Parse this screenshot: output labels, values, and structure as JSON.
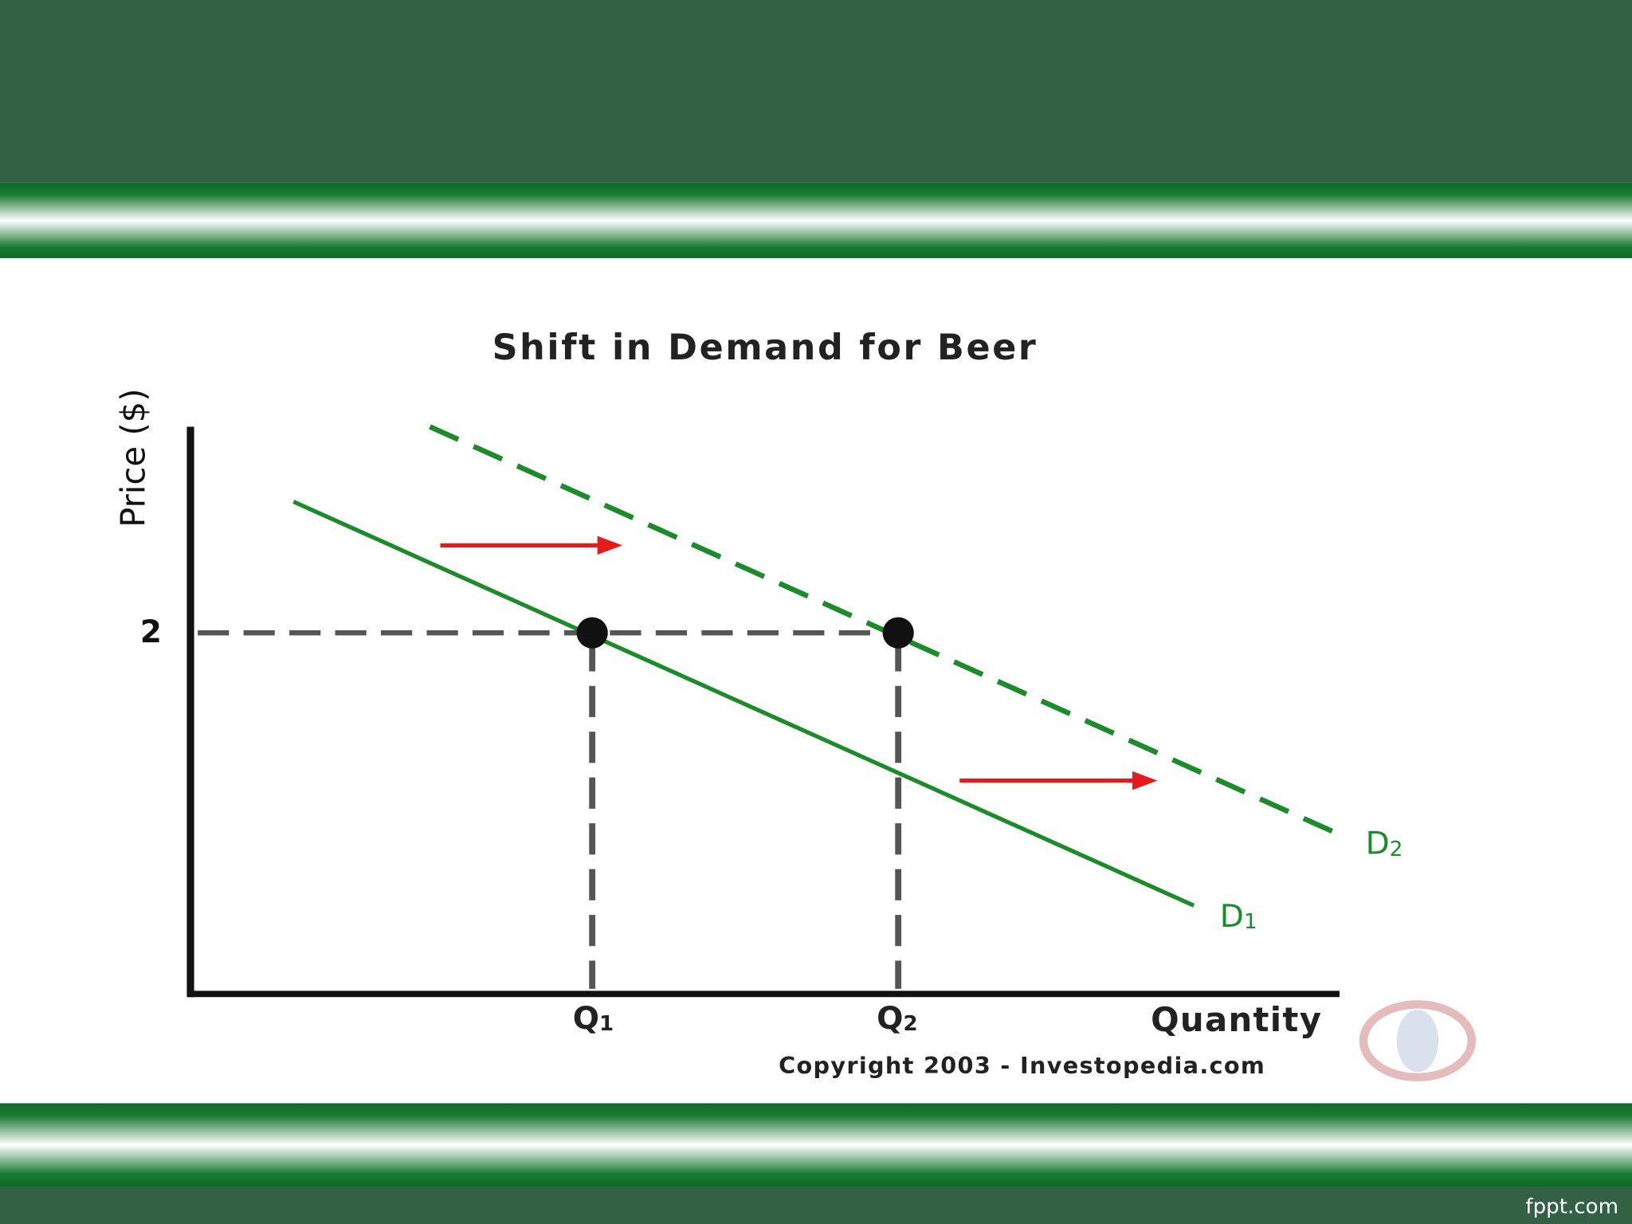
{
  "slide": {
    "title": "Shift in Demand for Beer",
    "y_axis_label": "Price ($)",
    "price_label": "2",
    "q1_label": {
      "main": "Q",
      "sub": "1"
    },
    "q2_label": {
      "main": "Q",
      "sub": "2"
    },
    "x_axis_label": "Quantity",
    "d1_label": {
      "main": "D",
      "sub": "1"
    },
    "d2_label": {
      "main": "D",
      "sub": "2"
    },
    "copyright": "Copyright 2003 - Investopedia.com",
    "footer": "fppt.com"
  }
}
